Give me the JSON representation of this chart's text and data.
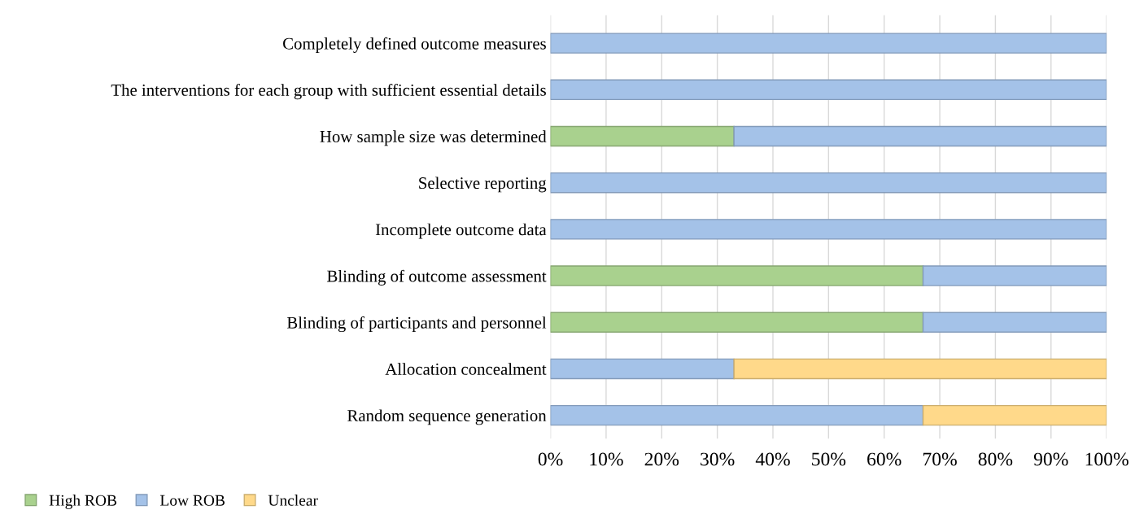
{
  "chart_data": {
    "type": "bar",
    "orientation": "horizontal",
    "stacked": true,
    "grid": "x",
    "legend": "bottom",
    "categories": [
      "Completely defined outcome measures",
      "The interventions for each group with sufficient essential details",
      "How sample size was determined",
      "Selective reporting",
      "Incomplete outcome data",
      "Blinding of outcome assessment",
      "Blinding of participants and personnel",
      "Allocation concealment",
      "Random sequence generation"
    ],
    "series": [
      {
        "name": "High ROB",
        "color": "#a9d18e",
        "values": [
          0,
          0,
          33,
          0,
          0,
          67,
          67,
          0,
          0
        ]
      },
      {
        "name": "Low ROB",
        "color": "#a4c2e8",
        "values": [
          100,
          100,
          67,
          100,
          100,
          33,
          33,
          33,
          67
        ]
      },
      {
        "name": "Unclear",
        "color": "#ffd98a",
        "values": [
          0,
          0,
          0,
          0,
          0,
          0,
          0,
          67,
          33
        ]
      }
    ],
    "xlim": [
      0,
      100
    ],
    "xticks": [
      {
        "value": 0,
        "label": "0%"
      },
      {
        "value": 10,
        "label": "10%"
      },
      {
        "value": 20,
        "label": "20%"
      },
      {
        "value": 30,
        "label": "30%"
      },
      {
        "value": 40,
        "label": "40%"
      },
      {
        "value": 50,
        "label": "50%"
      },
      {
        "value": 60,
        "label": "60%"
      },
      {
        "value": 70,
        "label": "70%"
      },
      {
        "value": 80,
        "label": "80%"
      },
      {
        "value": 90,
        "label": "90%"
      },
      {
        "value": 100,
        "label": "100%"
      }
    ]
  }
}
